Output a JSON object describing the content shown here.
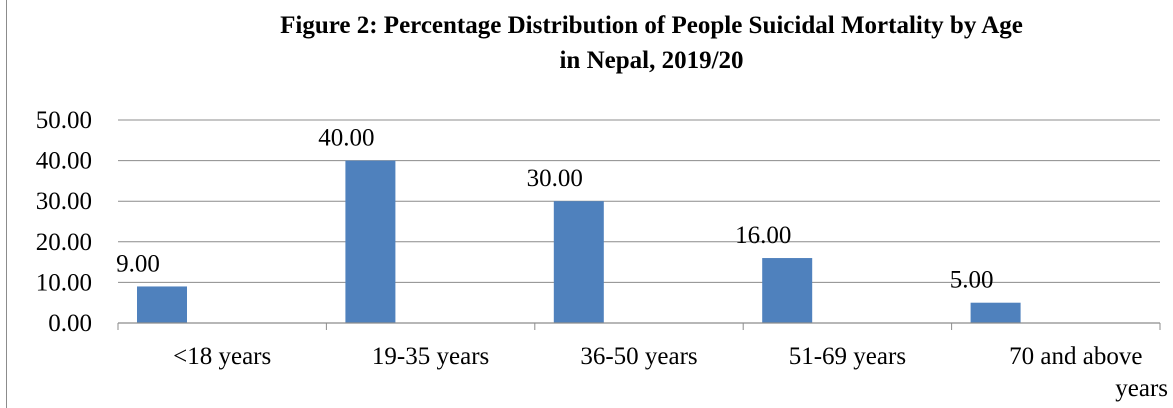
{
  "chart_data": {
    "type": "bar",
    "title_lines": [
      "Figure 2: Percentage Distribution of People Suicidal Mortality by Age",
      "in Nepal, 2019/20"
    ],
    "categories": [
      [
        "<18 years"
      ],
      [
        "19-35 years"
      ],
      [
        "36-50 years"
      ],
      [
        "51-69 years"
      ],
      [
        "70 and above",
        "years"
      ]
    ],
    "values": [
      9.0,
      40.0,
      30.0,
      16.0,
      5.0
    ],
    "data_labels": [
      "9.00",
      "40.00",
      "30.00",
      "16.00",
      "5.00"
    ],
    "y_ticks": [
      0,
      10,
      20,
      30,
      40,
      50
    ],
    "y_tick_labels": [
      "0.00",
      "10.00",
      "20.00",
      "30.00",
      "40.00",
      "50.00"
    ],
    "ylim": [
      0,
      50
    ],
    "gridlines": true,
    "legend": "none",
    "colors": {
      "bar": "#4f81bd",
      "grid": "#8c8c8c",
      "axis": "#8c8c8c",
      "text": "#000000"
    }
  }
}
